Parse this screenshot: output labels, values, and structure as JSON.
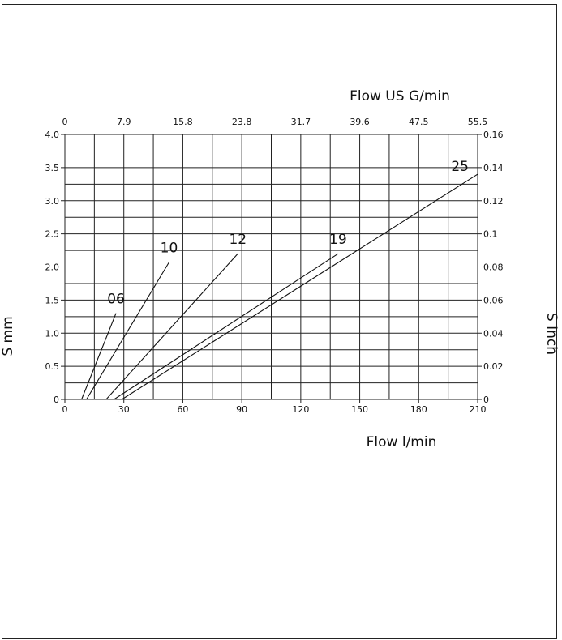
{
  "chart_data": {
    "type": "line",
    "x": {
      "label": "Flow l/min",
      "range": [
        0,
        210
      ],
      "ticks": [
        "0",
        "30",
        "60",
        "90",
        "120",
        "150",
        "180",
        "210"
      ],
      "tick_values": [
        0,
        30,
        60,
        90,
        120,
        150,
        180,
        210
      ]
    },
    "x_top": {
      "label": "Flow US G/min",
      "ticks": [
        "0",
        "7.9",
        "15.8",
        "23.8",
        "31.7",
        "39.6",
        "47.5",
        "55.5"
      ]
    },
    "y": {
      "label": "S mm",
      "range": [
        0,
        4.0
      ],
      "ticks": [
        "0",
        "0.5",
        "1.0",
        "1.5",
        "2.0",
        "2.5",
        "3.0",
        "3.5",
        "4.0"
      ],
      "tick_values": [
        0,
        0.5,
        1.0,
        1.5,
        2.0,
        2.5,
        3.0,
        3.5,
        4.0
      ]
    },
    "y_right": {
      "label": "S Inch",
      "ticks": [
        "0",
        "0.02",
        "0.04",
        "0.06",
        "0.08",
        "0.1",
        "0.12",
        "0.14",
        "0.16"
      ]
    },
    "grid": true,
    "series": [
      {
        "name": "06",
        "x": [
          8.5,
          26
        ],
        "y": [
          0,
          1.3
        ],
        "label_at": [
          26,
          1.45
        ]
      },
      {
        "name": "10",
        "x": [
          11,
          53
        ],
        "y": [
          0,
          2.07
        ],
        "label_at": [
          53,
          2.22
        ]
      },
      {
        "name": "12",
        "x": [
          21,
          88
        ],
        "y": [
          0,
          2.2
        ],
        "label_at": [
          88,
          2.35
        ]
      },
      {
        "name": "19",
        "x": [
          25,
          139
        ],
        "y": [
          0,
          2.2
        ],
        "label_at": [
          139,
          2.35
        ]
      },
      {
        "name": "25",
        "x": [
          29,
          210
        ],
        "y": [
          0,
          3.4
        ],
        "label_at": [
          201,
          3.45
        ]
      }
    ]
  }
}
